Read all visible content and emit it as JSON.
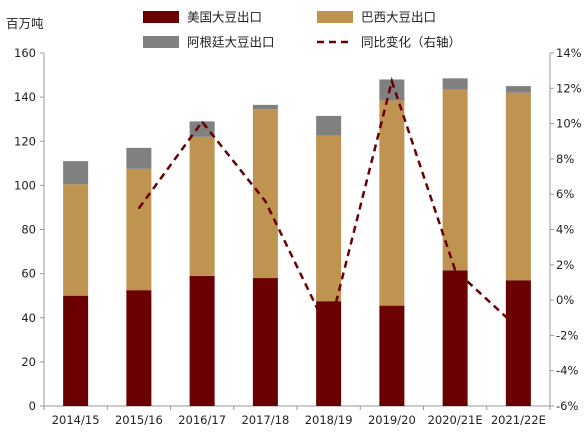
{
  "chart_data": {
    "type": "bar",
    "stacked": true,
    "secondary_type": "line",
    "y_unit_label": "百万吨",
    "categories": [
      "2014/15",
      "2015/16",
      "2016/17",
      "2017/18",
      "2018/19",
      "2019/20",
      "2020/21E",
      "2021/22E"
    ],
    "series": [
      {
        "name": "美国大豆出口",
        "axis": "left",
        "kind": "bar",
        "color": "#6b0000",
        "values": [
          50,
          52.5,
          59,
          58,
          47.5,
          45.5,
          61.5,
          57
        ]
      },
      {
        "name": "巴西大豆出口",
        "axis": "left",
        "kind": "bar",
        "color": "#bf9450",
        "values": [
          50.5,
          55,
          63,
          76.5,
          75,
          93,
          82,
          85
        ]
      },
      {
        "name": "阿根廷大豆出口",
        "axis": "left",
        "kind": "bar",
        "color": "#808080",
        "values": [
          10.5,
          9.5,
          7,
          2,
          9,
          9.5,
          5,
          3
        ]
      },
      {
        "name": "同比变化（右轴）",
        "axis": "right",
        "kind": "line",
        "color": "#6b0000",
        "dash": true,
        "values": [
          null,
          5.2,
          10.1,
          5.6,
          -1.8,
          12.4,
          1.7,
          -1.6
        ]
      }
    ],
    "y_left": {
      "min": 0,
      "max": 160,
      "step": 20,
      "tick_labels": [
        "0",
        "20",
        "40",
        "60",
        "80",
        "100",
        "120",
        "140",
        "160"
      ]
    },
    "y_right": {
      "min": -6,
      "max": 14,
      "step": 2,
      "tick_labels": [
        "-6%",
        "-4%",
        "-2%",
        "0%",
        "2%",
        "4%",
        "6%",
        "8%",
        "10%",
        "12%",
        "14%"
      ]
    },
    "grid": false,
    "legend_position": "top"
  }
}
